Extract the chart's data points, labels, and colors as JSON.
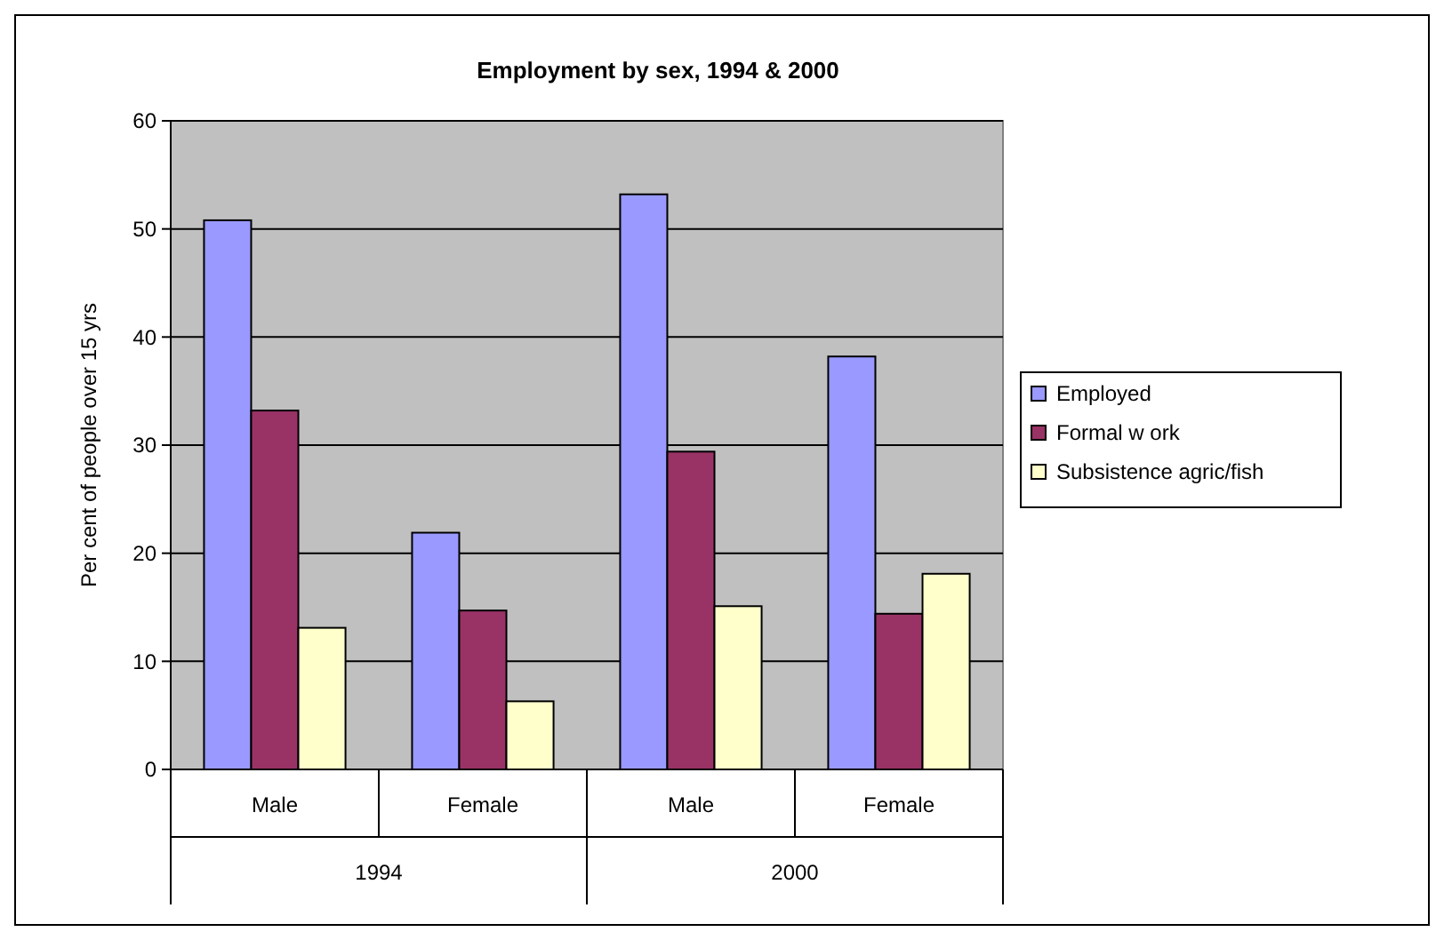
{
  "chart_data": {
    "type": "bar",
    "title": "Employment by sex, 1994 & 2000",
    "ylabel": "Per cent of people over 15 yrs",
    "categories": [
      "Male",
      "Female",
      "Male",
      "Female"
    ],
    "annotations": [
      "1994",
      "2000"
    ],
    "series": [
      {
        "name": "Employed",
        "color": "#9999ff",
        "values": [
          50.8,
          21.9,
          53.2,
          38.2
        ]
      },
      {
        "name": "Formal w ork",
        "color": "#993366",
        "values": [
          33.2,
          14.7,
          29.4,
          14.4
        ]
      },
      {
        "name": "Subsistence agric/fish",
        "color": "#ffffcc",
        "values": [
          13.1,
          6.3,
          15.1,
          18.1
        ]
      }
    ],
    "ylim": [
      0,
      60
    ],
    "yticks": [
      0,
      10,
      20,
      30,
      40,
      50,
      60
    ],
    "grid": "y",
    "legend": "right"
  }
}
